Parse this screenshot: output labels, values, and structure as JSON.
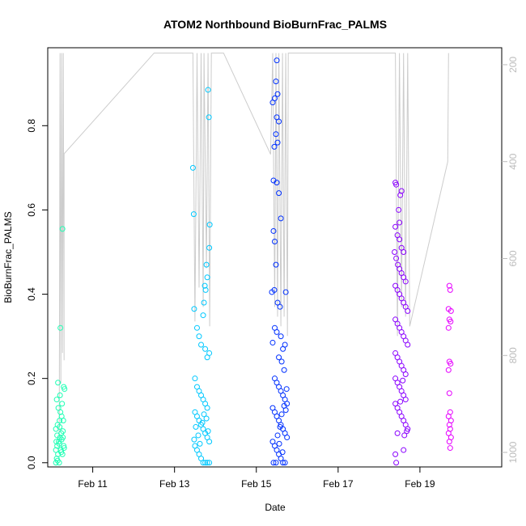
{
  "chart_data": {
    "type": "scatter",
    "title": "ATOM2 Northbound BioBurnFrac_PALMS",
    "xlabel": "Date",
    "ylabel": "BioBurnFrac_PALMS",
    "x_ticks": [
      "Feb 11",
      "Feb 13",
      "Feb 15",
      "Feb 17",
      "Feb 19"
    ],
    "x_tick_days": [
      11,
      13,
      15,
      17,
      19
    ],
    "xlim_days": [
      9.9,
      21.0
    ],
    "ylim": [
      -0.01,
      0.985
    ],
    "y_ticks": [
      0.0,
      0.2,
      0.4,
      0.6,
      0.8
    ],
    "right_axis_ticks": [
      200,
      400,
      600,
      800,
      1000
    ],
    "right_ylim": [
      165,
      1030
    ],
    "grid": false,
    "marker": "open circle",
    "color_scale": [
      "#00ffaa",
      "#00c8ff",
      "#0020ff",
      "#8a00ff",
      "#ff00ff"
    ],
    "series": [
      {
        "color": "#1effb4",
        "points": [
          [
            10.21,
            0.32
          ],
          [
            10.26,
            0.555
          ],
          [
            10.29,
            0.18
          ],
          [
            10.31,
            0.175
          ],
          [
            10.1,
            0.0
          ],
          [
            10.12,
            0.01
          ],
          [
            10.15,
            0.02
          ],
          [
            10.18,
            0.0
          ],
          [
            10.1,
            0.03
          ],
          [
            10.13,
            0.04
          ],
          [
            10.17,
            0.05
          ],
          [
            10.2,
            0.06
          ],
          [
            10.23,
            0.07
          ],
          [
            10.27,
            0.06
          ],
          [
            10.1,
            0.08
          ],
          [
            10.14,
            0.09
          ],
          [
            10.19,
            0.1
          ],
          [
            10.24,
            0.11
          ],
          [
            10.28,
            0.1
          ],
          [
            10.12,
            0.15
          ],
          [
            10.16,
            0.13
          ],
          [
            10.21,
            0.12
          ],
          [
            10.25,
            0.14
          ],
          [
            10.15,
            0.19
          ],
          [
            10.2,
            0.16
          ],
          [
            10.11,
            0.05
          ],
          [
            10.22,
            0.03
          ],
          [
            10.26,
            0.02
          ],
          [
            10.29,
            0.04
          ],
          [
            10.13,
            0.065
          ],
          [
            10.18,
            0.045
          ],
          [
            10.23,
            0.025
          ],
          [
            10.27,
            0.075
          ],
          [
            10.14,
            0.005
          ],
          [
            10.19,
            0.085
          ],
          [
            10.24,
            0.055
          ],
          [
            10.3,
            0.035
          ]
        ]
      },
      {
        "color": "#00c8ff",
        "points": [
          [
            13.45,
            0.7
          ],
          [
            13.47,
            0.59
          ],
          [
            13.82,
            0.885
          ],
          [
            13.84,
            0.82
          ],
          [
            13.86,
            0.565
          ],
          [
            13.85,
            0.51
          ],
          [
            13.8,
            0.44
          ],
          [
            13.78,
            0.47
          ],
          [
            13.76,
            0.41
          ],
          [
            13.74,
            0.42
          ],
          [
            13.72,
            0.38
          ],
          [
            13.7,
            0.35
          ],
          [
            13.48,
            0.365
          ],
          [
            13.55,
            0.32
          ],
          [
            13.6,
            0.3
          ],
          [
            13.65,
            0.28
          ],
          [
            13.75,
            0.27
          ],
          [
            13.8,
            0.25
          ],
          [
            13.85,
            0.26
          ],
          [
            13.5,
            0.2
          ],
          [
            13.55,
            0.18
          ],
          [
            13.6,
            0.17
          ],
          [
            13.65,
            0.16
          ],
          [
            13.7,
            0.15
          ],
          [
            13.75,
            0.14
          ],
          [
            13.8,
            0.13
          ],
          [
            13.5,
            0.12
          ],
          [
            13.55,
            0.11
          ],
          [
            13.6,
            0.1
          ],
          [
            13.65,
            0.09
          ],
          [
            13.7,
            0.08
          ],
          [
            13.75,
            0.07
          ],
          [
            13.8,
            0.06
          ],
          [
            13.85,
            0.05
          ],
          [
            13.5,
            0.04
          ],
          [
            13.55,
            0.03
          ],
          [
            13.6,
            0.02
          ],
          [
            13.65,
            0.01
          ],
          [
            13.7,
            0.0
          ],
          [
            13.75,
            0.0
          ],
          [
            13.8,
            0.0
          ],
          [
            13.85,
            0.0
          ],
          [
            13.52,
            0.085
          ],
          [
            13.58,
            0.065
          ],
          [
            13.62,
            0.045
          ],
          [
            13.68,
            0.095
          ],
          [
            13.72,
            0.115
          ],
          [
            13.78,
            0.105
          ],
          [
            13.82,
            0.075
          ],
          [
            13.48,
            0.055
          ]
        ]
      },
      {
        "color": "#0030ff",
        "points": [
          [
            15.5,
            0.955
          ],
          [
            15.48,
            0.905
          ],
          [
            15.45,
            0.865
          ],
          [
            15.4,
            0.855
          ],
          [
            15.52,
            0.875
          ],
          [
            15.5,
            0.82
          ],
          [
            15.55,
            0.81
          ],
          [
            15.48,
            0.78
          ],
          [
            15.44,
            0.75
          ],
          [
            15.52,
            0.76
          ],
          [
            15.42,
            0.67
          ],
          [
            15.5,
            0.665
          ],
          [
            15.55,
            0.64
          ],
          [
            15.6,
            0.58
          ],
          [
            15.42,
            0.55
          ],
          [
            15.45,
            0.525
          ],
          [
            15.48,
            0.47
          ],
          [
            15.38,
            0.405
          ],
          [
            15.44,
            0.41
          ],
          [
            15.52,
            0.38
          ],
          [
            15.58,
            0.37
          ],
          [
            15.72,
            0.405
          ],
          [
            15.45,
            0.32
          ],
          [
            15.5,
            0.31
          ],
          [
            15.6,
            0.3
          ],
          [
            15.65,
            0.27
          ],
          [
            15.7,
            0.28
          ],
          [
            15.4,
            0.285
          ],
          [
            15.55,
            0.25
          ],
          [
            15.62,
            0.24
          ],
          [
            15.68,
            0.22
          ],
          [
            15.45,
            0.2
          ],
          [
            15.5,
            0.19
          ],
          [
            15.55,
            0.18
          ],
          [
            15.6,
            0.17
          ],
          [
            15.65,
            0.16
          ],
          [
            15.7,
            0.15
          ],
          [
            15.75,
            0.14
          ],
          [
            15.4,
            0.13
          ],
          [
            15.45,
            0.12
          ],
          [
            15.5,
            0.11
          ],
          [
            15.55,
            0.1
          ],
          [
            15.6,
            0.09
          ],
          [
            15.65,
            0.08
          ],
          [
            15.7,
            0.07
          ],
          [
            15.75,
            0.06
          ],
          [
            15.4,
            0.05
          ],
          [
            15.45,
            0.04
          ],
          [
            15.5,
            0.03
          ],
          [
            15.55,
            0.02
          ],
          [
            15.6,
            0.01
          ],
          [
            15.65,
            0.0
          ],
          [
            15.7,
            0.0
          ],
          [
            15.42,
            0.0
          ],
          [
            15.48,
            0.0
          ],
          [
            15.58,
            0.085
          ],
          [
            15.62,
            0.115
          ],
          [
            15.68,
            0.135
          ],
          [
            15.72,
            0.125
          ],
          [
            15.52,
            0.065
          ],
          [
            15.56,
            0.045
          ],
          [
            15.64,
            0.025
          ],
          [
            15.74,
            0.175
          ]
        ]
      },
      {
        "color": "#8a00ff",
        "points": [
          [
            18.4,
            0.665
          ],
          [
            18.42,
            0.66
          ],
          [
            18.55,
            0.645
          ],
          [
            18.52,
            0.635
          ],
          [
            18.48,
            0.6
          ],
          [
            18.5,
            0.57
          ],
          [
            18.4,
            0.56
          ],
          [
            18.45,
            0.54
          ],
          [
            18.5,
            0.53
          ],
          [
            18.55,
            0.51
          ],
          [
            18.6,
            0.5
          ],
          [
            18.38,
            0.5
          ],
          [
            18.42,
            0.485
          ],
          [
            18.46,
            0.47
          ],
          [
            18.5,
            0.46
          ],
          [
            18.55,
            0.45
          ],
          [
            18.6,
            0.44
          ],
          [
            18.65,
            0.43
          ],
          [
            18.4,
            0.42
          ],
          [
            18.45,
            0.41
          ],
          [
            18.5,
            0.4
          ],
          [
            18.55,
            0.39
          ],
          [
            18.6,
            0.38
          ],
          [
            18.65,
            0.37
          ],
          [
            18.7,
            0.36
          ],
          [
            18.4,
            0.34
          ],
          [
            18.45,
            0.33
          ],
          [
            18.5,
            0.32
          ],
          [
            18.55,
            0.31
          ],
          [
            18.6,
            0.3
          ],
          [
            18.65,
            0.29
          ],
          [
            18.7,
            0.28
          ],
          [
            18.4,
            0.26
          ],
          [
            18.45,
            0.25
          ],
          [
            18.5,
            0.24
          ],
          [
            18.55,
            0.23
          ],
          [
            18.6,
            0.22
          ],
          [
            18.65,
            0.21
          ],
          [
            18.4,
            0.2
          ],
          [
            18.45,
            0.19
          ],
          [
            18.5,
            0.18
          ],
          [
            18.55,
            0.17
          ],
          [
            18.6,
            0.16
          ],
          [
            18.65,
            0.15
          ],
          [
            18.4,
            0.14
          ],
          [
            18.45,
            0.13
          ],
          [
            18.5,
            0.12
          ],
          [
            18.55,
            0.11
          ],
          [
            18.6,
            0.1
          ],
          [
            18.65,
            0.09
          ],
          [
            18.7,
            0.08
          ],
          [
            18.45,
            0.07
          ],
          [
            18.6,
            0.03
          ],
          [
            18.4,
            0.02
          ],
          [
            18.42,
            0.0
          ],
          [
            18.62,
            0.065
          ],
          [
            18.68,
            0.075
          ],
          [
            18.52,
            0.145
          ],
          [
            18.58,
            0.195
          ]
        ]
      },
      {
        "color": "#e600ff",
        "points": [
          [
            19.72,
            0.42
          ],
          [
            19.74,
            0.41
          ],
          [
            19.7,
            0.365
          ],
          [
            19.76,
            0.36
          ],
          [
            19.72,
            0.34
          ],
          [
            19.75,
            0.335
          ],
          [
            19.7,
            0.32
          ],
          [
            19.72,
            0.24
          ],
          [
            19.75,
            0.235
          ],
          [
            19.7,
            0.22
          ],
          [
            19.72,
            0.165
          ],
          [
            19.74,
            0.12
          ],
          [
            19.7,
            0.11
          ],
          [
            19.76,
            0.1
          ],
          [
            19.72,
            0.09
          ],
          [
            19.74,
            0.08
          ],
          [
            19.7,
            0.07
          ],
          [
            19.76,
            0.06
          ],
          [
            19.72,
            0.05
          ],
          [
            19.74,
            0.035
          ]
        ]
      }
    ],
    "altitude_line": {
      "color": "#cccccc",
      "points": [
        [
          10.18,
          970
        ],
        [
          10.2,
          176
        ],
        [
          10.22,
          858
        ],
        [
          10.24,
          176
        ],
        [
          10.26,
          795
        ],
        [
          10.28,
          176
        ],
        [
          10.3,
          810
        ],
        [
          10.3,
          384
        ],
        [
          12.5,
          176
        ],
        [
          12.6,
          176
        ],
        [
          13.45,
          176
        ],
        [
          13.5,
          730
        ],
        [
          13.55,
          176
        ],
        [
          13.6,
          660
        ],
        [
          13.65,
          176
        ],
        [
          13.7,
          700
        ],
        [
          13.72,
          176
        ],
        [
          13.78,
          620
        ],
        [
          13.82,
          176
        ],
        [
          13.86,
          740
        ],
        [
          13.9,
          176
        ],
        [
          14.2,
          176
        ],
        [
          15.35,
          385
        ],
        [
          15.4,
          176
        ],
        [
          15.45,
          700
        ],
        [
          15.48,
          176
        ],
        [
          15.52,
          720
        ],
        [
          15.55,
          176
        ],
        [
          15.6,
          740
        ],
        [
          15.64,
          176
        ],
        [
          15.68,
          720
        ],
        [
          15.72,
          176
        ],
        [
          15.76,
          760
        ],
        [
          15.78,
          176
        ],
        [
          18.3,
          176
        ],
        [
          18.4,
          176
        ],
        [
          18.45,
          760
        ],
        [
          18.5,
          176
        ],
        [
          18.55,
          700
        ],
        [
          18.6,
          176
        ],
        [
          18.65,
          720
        ],
        [
          18.7,
          176
        ],
        [
          18.75,
          740
        ],
        [
          19.68,
          400
        ],
        [
          19.7,
          176
        ]
      ]
    }
  }
}
